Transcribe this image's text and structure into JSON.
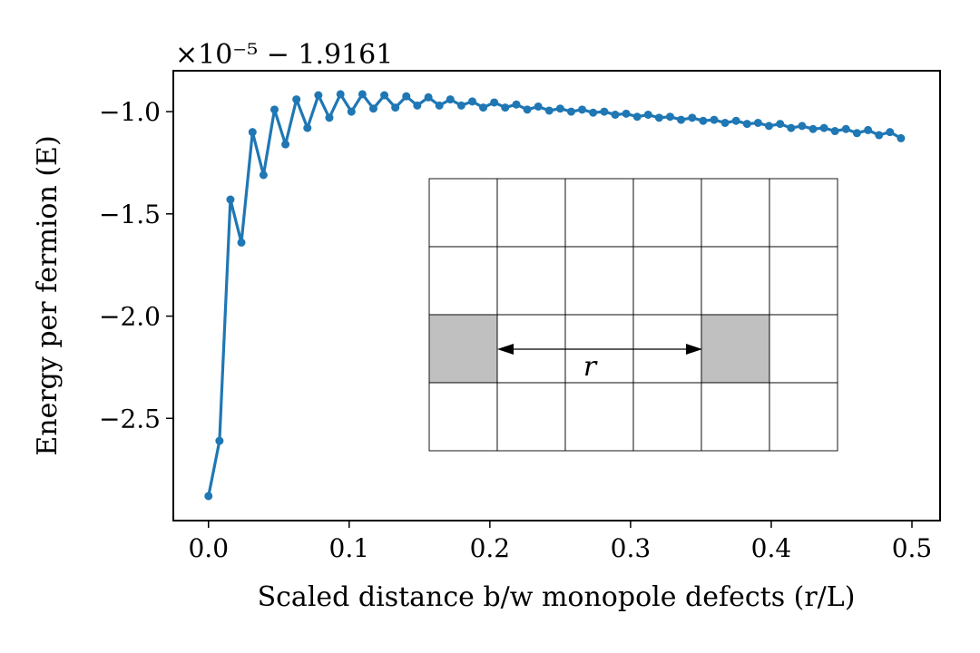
{
  "chart_data": {
    "type": "line",
    "title": "",
    "xlabel": "Scaled distance b/w monopole defects (r/L)",
    "ylabel": "Energy per fermion (E)",
    "offset_text": "×10⁻⁵ − 1.9161",
    "xlim": [
      -0.025,
      0.52
    ],
    "ylim": [
      -3.0,
      -0.8
    ],
    "xticks": [
      0.0,
      0.1,
      0.2,
      0.3,
      0.4,
      0.5
    ],
    "xtick_labels": [
      "0.0",
      "0.1",
      "0.2",
      "0.3",
      "0.4",
      "0.5"
    ],
    "yticks": [
      -1.0,
      -1.5,
      -2.0,
      -2.5
    ],
    "ytick_labels": [
      "−1.0",
      "−1.5",
      "−2.0",
      "−2.5"
    ],
    "color": "#1f77b4",
    "series": [
      {
        "name": "E",
        "x": [
          0.0,
          0.0078,
          0.0156,
          0.0234,
          0.0313,
          0.0391,
          0.0469,
          0.0547,
          0.0625,
          0.0703,
          0.0781,
          0.0859,
          0.0938,
          0.1016,
          0.1094,
          0.1172,
          0.125,
          0.1328,
          0.1406,
          0.1484,
          0.1563,
          0.1641,
          0.1719,
          0.1797,
          0.1875,
          0.1953,
          0.2031,
          0.2109,
          0.2188,
          0.2266,
          0.2344,
          0.2422,
          0.25,
          0.2578,
          0.2656,
          0.2734,
          0.2813,
          0.2891,
          0.2969,
          0.3047,
          0.3125,
          0.3203,
          0.3281,
          0.3359,
          0.3438,
          0.3516,
          0.3594,
          0.3672,
          0.375,
          0.3828,
          0.3906,
          0.3984,
          0.4063,
          0.4141,
          0.4219,
          0.4297,
          0.4375,
          0.4453,
          0.4531,
          0.4609,
          0.4688,
          0.4766,
          0.4844,
          0.4922
        ],
        "y": [
          -2.88,
          -2.61,
          -1.43,
          -1.64,
          -1.1,
          -1.31,
          -0.99,
          -1.16,
          -0.94,
          -1.08,
          -0.92,
          -1.03,
          -0.915,
          -1.0,
          -0.915,
          -0.985,
          -0.92,
          -0.98,
          -0.925,
          -0.97,
          -0.93,
          -0.97,
          -0.94,
          -0.97,
          -0.95,
          -0.98,
          -0.955,
          -0.98,
          -0.965,
          -0.99,
          -0.975,
          -0.995,
          -0.985,
          -1.0,
          -0.99,
          -1.005,
          -1.0,
          -1.015,
          -1.01,
          -1.025,
          -1.015,
          -1.03,
          -1.025,
          -1.04,
          -1.03,
          -1.045,
          -1.04,
          -1.055,
          -1.045,
          -1.06,
          -1.055,
          -1.07,
          -1.06,
          -1.08,
          -1.07,
          -1.085,
          -1.08,
          -1.095,
          -1.085,
          -1.105,
          -1.09,
          -1.115,
          -1.1,
          -1.13
        ]
      }
    ],
    "inset": {
      "description_label": "r",
      "rows": 4,
      "cols": 6,
      "shaded_cells": [
        [
          2,
          0
        ],
        [
          2,
          4
        ]
      ],
      "shade_color": "#c0c0c0"
    }
  }
}
